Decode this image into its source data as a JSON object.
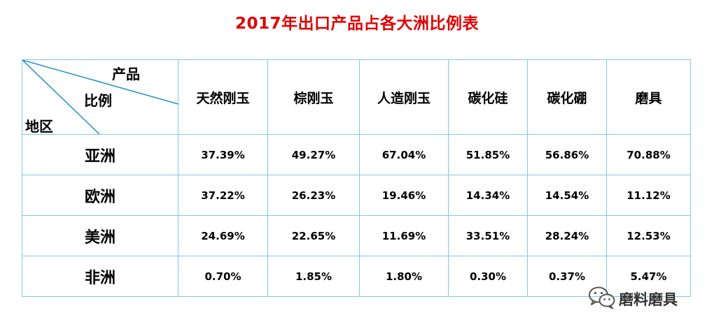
{
  "title": "2017年出口产品占各大洲比例表",
  "corner": {
    "product_label": "产品",
    "ratio_label": "比例",
    "region_label": "地区"
  },
  "columns": [
    "天然刚玉",
    "棕刚玉",
    "人造刚玉",
    "碳化硅",
    "碳化硼",
    "磨具"
  ],
  "rows": [
    {
      "region": "亚洲",
      "values": [
        "37.39%",
        "49.27%",
        "67.04%",
        "51.85%",
        "56.86%",
        "70.88%"
      ]
    },
    {
      "region": "欧洲",
      "values": [
        "37.22%",
        "26.23%",
        "19.46%",
        "14.34%",
        "14.54%",
        "11.12%"
      ]
    },
    {
      "region": "美洲",
      "values": [
        "24.69%",
        "22.65%",
        "11.69%",
        "33.51%",
        "28.24%",
        "12.53%"
      ]
    },
    {
      "region": "非洲",
      "values": [
        "0.70%",
        "1.85%",
        "1.80%",
        "0.30%",
        "0.37%",
        "5.47%"
      ]
    }
  ],
  "colors": {
    "title": "#e00000",
    "border": "#7ec8e3",
    "diagonal": "#1e8fc9"
  },
  "watermark": {
    "icon": "wechat-icon",
    "text": "磨料磨具"
  }
}
